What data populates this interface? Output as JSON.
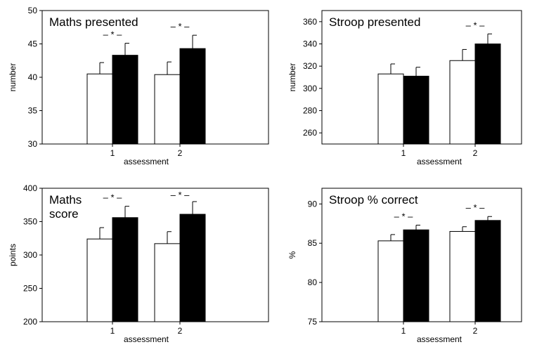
{
  "chart_data": [
    {
      "type": "bar",
      "title_lines": [
        "Maths  presented"
      ],
      "xlabel": "assessment",
      "ylabel": "number",
      "categories": [
        "1",
        "2"
      ],
      "ylim": [
        30,
        50
      ],
      "yticks": [
        "30",
        "35",
        "40",
        "45",
        "50"
      ],
      "series": [
        {
          "color": "#ffffff",
          "values": [
            40.5,
            40.4
          ],
          "errors": [
            1.7,
            1.9
          ]
        },
        {
          "color": "#000000",
          "values": [
            43.3,
            44.3
          ],
          "errors": [
            1.8,
            2.0
          ]
        }
      ],
      "annotations": [
        "– * –",
        "– * –"
      ]
    },
    {
      "type": "bar",
      "title_lines": [
        "Stroop  presented"
      ],
      "xlabel": "assessment",
      "ylabel": "number",
      "categories": [
        "1",
        "2"
      ],
      "ylim": [
        250,
        370
      ],
      "yticks": [
        "260",
        "280",
        "300",
        "320",
        "340",
        "360"
      ],
      "series": [
        {
          "color": "#ffffff",
          "values": [
            313,
            325
          ],
          "errors": [
            9,
            10
          ]
        },
        {
          "color": "#000000",
          "values": [
            311,
            340
          ],
          "errors": [
            8,
            9
          ]
        }
      ],
      "annotations": [
        "",
        "– * –"
      ]
    },
    {
      "type": "bar",
      "title_lines": [
        "Maths",
        "score"
      ],
      "xlabel": "assessment",
      "ylabel": "points",
      "categories": [
        "1",
        "2"
      ],
      "ylim": [
        200,
        400
      ],
      "yticks": [
        "200",
        "250",
        "300",
        "350",
        "400"
      ],
      "series": [
        {
          "color": "#ffffff",
          "values": [
            324,
            317
          ],
          "errors": [
            17,
            18
          ]
        },
        {
          "color": "#000000",
          "values": [
            356,
            361
          ],
          "errors": [
            17,
            19
          ]
        }
      ],
      "annotations": [
        "– * –",
        "– * –"
      ]
    },
    {
      "type": "bar",
      "title_lines": [
        "Stroop  % correct"
      ],
      "xlabel": "assessment",
      "ylabel": "%",
      "categories": [
        "1",
        "2"
      ],
      "ylim": [
        75,
        92
      ],
      "yticks": [
        "75",
        "80",
        "85",
        "90"
      ],
      "series": [
        {
          "color": "#ffffff",
          "values": [
            85.3,
            86.5
          ],
          "errors": [
            0.8,
            0.6
          ]
        },
        {
          "color": "#000000",
          "values": [
            86.7,
            87.9
          ],
          "errors": [
            0.6,
            0.5
          ]
        }
      ],
      "annotations": [
        "– * –",
        "– * –"
      ]
    }
  ]
}
